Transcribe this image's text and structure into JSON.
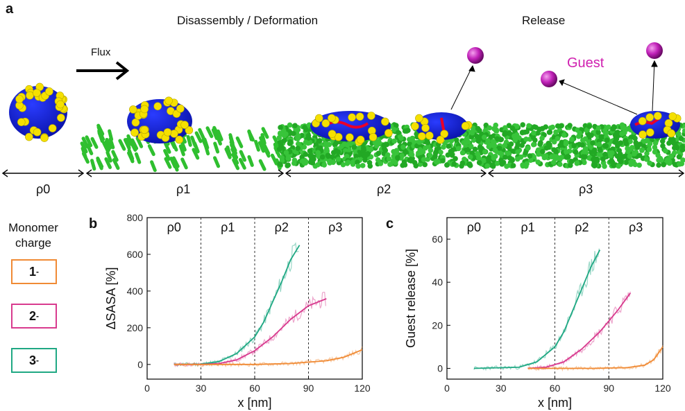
{
  "panel_a": {
    "letter": "a",
    "headings": [
      "Disassembly / Deformation",
      "Release"
    ],
    "flux_label": "Flux",
    "guest_label": "Guest",
    "regions": [
      "ρ0",
      "ρ1",
      "ρ2",
      "ρ3"
    ]
  },
  "legend": {
    "title_line1": "Monomer",
    "title_line2": "charge",
    "items": [
      {
        "label": "1",
        "superscript": "-",
        "color": "#f08a34"
      },
      {
        "label": "2",
        "superscript": "-",
        "color": "#d83a8e"
      },
      {
        "label": "3",
        "superscript": "-",
        "color": "#1fa883"
      }
    ]
  },
  "chart_data": [
    {
      "panel": "b",
      "type": "line",
      "xlabel": "x [nm]",
      "ylabel": "ΔSASA [%]",
      "xlim": [
        0,
        120
      ],
      "ylim": [
        -80,
        800
      ],
      "xticks": [
        0,
        30,
        60,
        90,
        120
      ],
      "yticks": [
        0,
        200,
        400,
        600,
        800
      ],
      "region_labels": [
        "ρ0",
        "ρ1",
        "ρ2",
        "ρ3"
      ],
      "region_boundaries": [
        30,
        60,
        90
      ],
      "series": [
        {
          "name": "3-",
          "color": "#1fa883",
          "x": [
            15,
            30,
            40,
            50,
            60,
            65,
            70,
            75,
            80,
            85
          ],
          "y": [
            0,
            2,
            15,
            60,
            150,
            230,
            340,
            450,
            570,
            650
          ]
        },
        {
          "name": "2-",
          "color": "#d83a8e",
          "x": [
            15,
            30,
            40,
            50,
            60,
            70,
            80,
            90,
            100
          ],
          "y": [
            0,
            0,
            5,
            25,
            75,
            150,
            245,
            320,
            358
          ]
        },
        {
          "name": "1-",
          "color": "#f08a34",
          "x": [
            15,
            40,
            60,
            80,
            100,
            110,
            120
          ],
          "y": [
            0,
            0,
            0,
            5,
            20,
            40,
            80
          ]
        }
      ]
    },
    {
      "panel": "c",
      "type": "line",
      "xlabel": "x [nm]",
      "ylabel": "Guest release [%]",
      "xlim": [
        0,
        120
      ],
      "ylim": [
        -5,
        70
      ],
      "xticks": [
        0,
        30,
        60,
        90,
        120
      ],
      "yticks": [
        0,
        20,
        40,
        60
      ],
      "region_labels": [
        "ρ0",
        "ρ1",
        "ρ2",
        "ρ3"
      ],
      "region_boundaries": [
        30,
        60,
        90
      ],
      "series": [
        {
          "name": "3-",
          "color": "#1fa883",
          "x": [
            15,
            40,
            50,
            60,
            65,
            70,
            75,
            80,
            85
          ],
          "y": [
            0,
            0.5,
            3,
            10,
            17,
            27,
            37,
            47,
            55
          ]
        },
        {
          "name": "2-",
          "color": "#d83a8e",
          "x": [
            45,
            55,
            65,
            75,
            85,
            95,
            102
          ],
          "y": [
            0,
            0.5,
            3,
            9,
            17,
            27,
            35
          ]
        },
        {
          "name": "1-",
          "color": "#f08a34",
          "x": [
            45,
            80,
            100,
            110,
            115,
            120
          ],
          "y": [
            0,
            0,
            0.3,
            1.5,
            4,
            10
          ]
        }
      ]
    }
  ]
}
